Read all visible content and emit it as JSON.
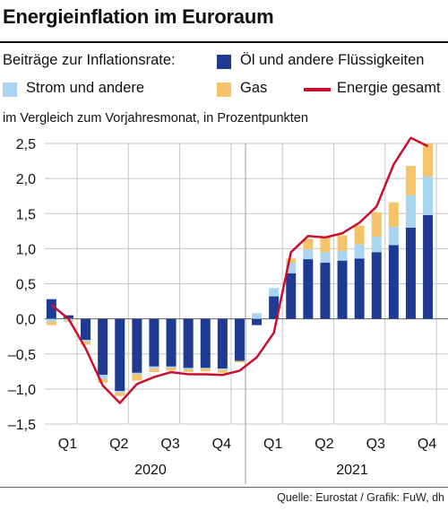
{
  "title": "Energieinflation im Euroraum",
  "legend": {
    "prefix": "Beiträge zur Inflationsrate:",
    "items": [
      {
        "name": "Öl und andere Flüssigkeiten",
        "color": "#1f3a93",
        "kind": "bar"
      },
      {
        "name": "Strom und andere",
        "color": "#a9d4f2",
        "kind": "bar"
      },
      {
        "name": "Gas",
        "color": "#f5c46a",
        "kind": "bar"
      },
      {
        "name": "Energie gesamt",
        "color": "#c8102e",
        "kind": "line"
      }
    ]
  },
  "subtitle": "im Vergleich zum Vorjahresmonat, in Prozentpunkten",
  "source": "Quelle: Eurostat / Grafik: FuW, dh",
  "chart_data": {
    "type": "bar",
    "stacked": true,
    "months": [
      "Jan 2020",
      "Feb 2020",
      "Mar 2020",
      "Apr 2020",
      "May 2020",
      "Jun 2020",
      "Jul 2020",
      "Aug 2020",
      "Sep 2020",
      "Oct 2020",
      "Nov 2020",
      "Dec 2020",
      "Jan 2021",
      "Feb 2021",
      "Mar 2021",
      "Apr 2021",
      "May 2021",
      "Jun 2021",
      "Jul 2021",
      "Aug 2021",
      "Sep 2021",
      "Oct 2021",
      "Nov 2021"
    ],
    "quarter_labels": [
      "Q1",
      "Q2",
      "Q3",
      "Q4",
      "Q1",
      "Q2",
      "Q3",
      "Q4"
    ],
    "year_labels": [
      "2020",
      "2021"
    ],
    "series": [
      {
        "name": "Öl und andere Flüssigkeiten",
        "color": "#1f3a93",
        "values": [
          0.28,
          0.05,
          -0.3,
          -0.8,
          -1.03,
          -0.77,
          -0.68,
          -0.68,
          -0.7,
          -0.7,
          -0.71,
          -0.6,
          -0.09,
          0.32,
          0.65,
          0.85,
          0.8,
          0.83,
          0.86,
          0.95,
          1.05,
          1.3,
          1.48
        ]
      },
      {
        "name": "Strom und andere",
        "color": "#a9d4f2",
        "values": [
          -0.04,
          -0.02,
          -0.03,
          -0.06,
          -0.02,
          -0.02,
          -0.03,
          -0.02,
          -0.02,
          -0.01,
          -0.02,
          0.0,
          0.08,
          0.12,
          0.15,
          0.14,
          0.15,
          0.14,
          0.2,
          0.22,
          0.26,
          0.46,
          0.55
        ]
      },
      {
        "name": "Gas",
        "color": "#f5c46a",
        "values": [
          -0.05,
          -0.02,
          -0.04,
          -0.05,
          -0.05,
          -0.09,
          -0.05,
          -0.04,
          -0.04,
          -0.04,
          -0.04,
          -0.02,
          0.0,
          0.0,
          0.06,
          0.15,
          0.22,
          0.22,
          0.27,
          0.35,
          0.35,
          0.42,
          0.47
        ]
      }
    ],
    "line": {
      "name": "Energie gesamt",
      "color": "#c8102e",
      "values": [
        0.2,
        0.0,
        -0.42,
        -0.95,
        -1.2,
        -0.93,
        -0.83,
        -0.76,
        -0.79,
        -0.79,
        -0.8,
        -0.74,
        -0.55,
        -0.2,
        0.95,
        1.18,
        1.16,
        1.22,
        1.37,
        1.6,
        2.2,
        2.58,
        2.46
      ]
    },
    "ylim": [
      -1.5,
      2.5
    ],
    "yticks": [
      -1.5,
      -1.0,
      -0.5,
      0.0,
      0.5,
      1.0,
      1.5,
      2.0,
      2.5
    ],
    "ytick_labels": [
      "–1,5",
      "–1,0",
      "–0,5",
      "0,0",
      "0,5",
      "1,0",
      "1,5",
      "2,0",
      "2,5"
    ],
    "grid": true
  }
}
